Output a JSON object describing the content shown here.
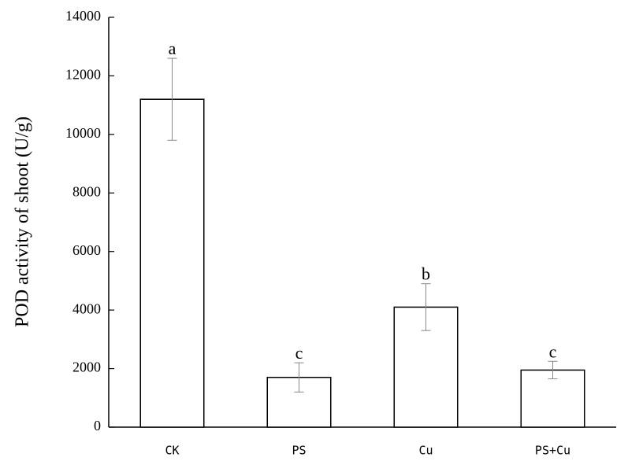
{
  "chart_data": {
    "type": "bar",
    "y_label": "POD activity of shoot (U/g)",
    "categories": [
      "CK",
      "PS",
      "Cu",
      "PS+Cu"
    ],
    "values": [
      11200,
      1700,
      4100,
      1950
    ],
    "errors": [
      1400,
      500,
      800,
      300
    ],
    "letters": [
      "a",
      "c",
      "b",
      "c"
    ],
    "color": "#ffffff",
    "ylim": [
      0,
      14000
    ],
    "yticks": [
      0,
      2000,
      4000,
      6000,
      8000,
      10000,
      12000,
      14000
    ],
    "grid": false
  }
}
